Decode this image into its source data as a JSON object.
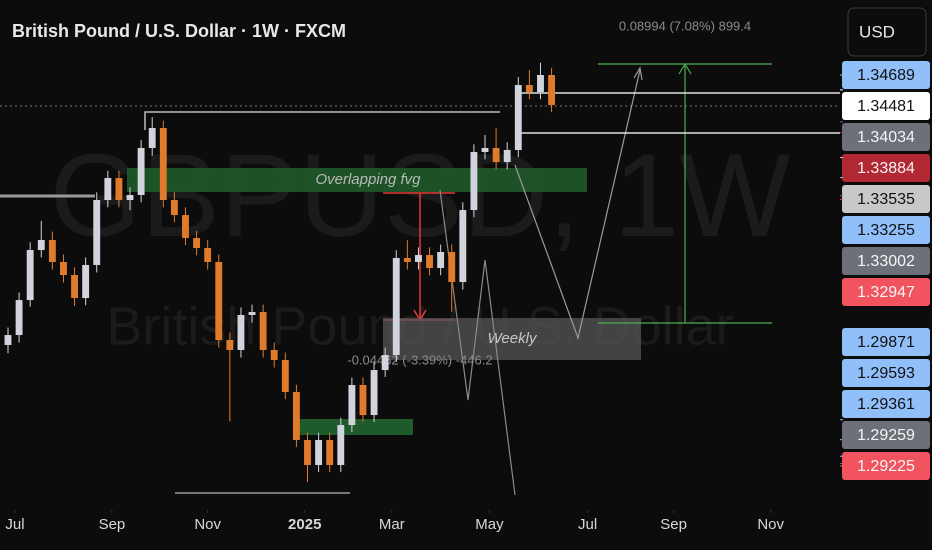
{
  "chart_data": {
    "type": "candlestick",
    "title": "British Pound / U.S. Dollar · 1W · FXCM",
    "currency_button": "USD",
    "watermark": {
      "symbol": "GBPUSD, 1W",
      "name": "British Pound / U.S. Dollar"
    },
    "annotations": {
      "measure_up": "0.08994 (7.08%) 899.4",
      "measure_down": "-0.04462 (-3.39%) -446.2",
      "zone_fvg": "Overlapping fvg",
      "zone_weekly": "Weekly"
    },
    "up_color": "#d1d4dc",
    "down_color": "#e07b2c",
    "open": [
      1.30916,
      1.31055,
      1.31544,
      1.32243,
      1.32383,
      1.32076,
      1.31894,
      1.31572,
      1.32034,
      1.32942,
      1.33249,
      1.32942,
      1.33012,
      1.33669,
      1.33948,
      1.32942,
      1.32732,
      1.32411,
      1.32271,
      1.32076,
      1.30985,
      1.30846,
      1.31335,
      1.31377,
      1.30846,
      1.30706,
      1.30259,
      1.29588,
      1.29239,
      1.29588,
      1.29239,
      1.29798,
      1.30357,
      1.29937,
      1.30566,
      1.30776,
      1.32131,
      1.32076,
      1.32173,
      1.31992,
      1.32215,
      1.31796,
      1.32802,
      1.33613,
      1.33669,
      1.33473,
      1.33641,
      1.34549,
      1.34451,
      1.34689
    ],
    "high": [
      1.3116,
      1.3165,
      1.3235,
      1.3265,
      1.325,
      1.3218,
      1.32,
      1.3214,
      1.3305,
      1.3335,
      1.3335,
      1.3312,
      1.3378,
      1.341,
      1.3405,
      1.3305,
      1.3284,
      1.3251,
      1.3238,
      1.3218,
      1.3109,
      1.3144,
      1.3148,
      1.3148,
      1.3095,
      1.3081,
      1.3036,
      1.2969,
      1.2969,
      1.2969,
      1.299,
      1.3046,
      1.3046,
      1.3067,
      1.3088,
      1.3224,
      1.3238,
      1.3228,
      1.3228,
      1.3232,
      1.3232,
      1.3291,
      1.3372,
      1.3385,
      1.3395,
      1.3375,
      1.3466,
      1.3476,
      1.3486,
      1.3479
    ],
    "low": [
      1.308,
      1.3095,
      1.3145,
      1.3214,
      1.3197,
      1.3179,
      1.3146,
      1.3147,
      1.3193,
      1.3284,
      1.3284,
      1.328,
      1.3291,
      1.3356,
      1.3284,
      1.3263,
      1.3231,
      1.3217,
      1.3197,
      1.3088,
      1.2985,
      1.3074,
      1.3123,
      1.3074,
      1.306,
      1.3016,
      1.2949,
      1.29,
      1.2914,
      1.2914,
      1.2914,
      1.297,
      1.2984,
      1.2984,
      1.3047,
      1.3068,
      1.3197,
      1.3197,
      1.3189,
      1.3189,
      1.3138,
      1.3169,
      1.327,
      1.3351,
      1.3337,
      1.3337,
      1.3354,
      1.3435,
      1.3435,
      1.3417
    ],
    "close": [
      1.31055,
      1.31544,
      1.32243,
      1.32383,
      1.32076,
      1.31894,
      1.31572,
      1.32034,
      1.32942,
      1.33249,
      1.32942,
      1.33012,
      1.33669,
      1.33948,
      1.32942,
      1.32732,
      1.32411,
      1.32271,
      1.32076,
      1.30985,
      1.30846,
      1.31335,
      1.31377,
      1.30846,
      1.30706,
      1.30259,
      1.29588,
      1.29239,
      1.29588,
      1.29239,
      1.29798,
      1.30357,
      1.29937,
      1.30566,
      1.30776,
      1.32131,
      1.32076,
      1.32173,
      1.31992,
      1.32215,
      1.31796,
      1.32802,
      1.33613,
      1.33669,
      1.33473,
      1.33641,
      1.34549,
      1.34451,
      1.34689,
      1.3427
    ],
    "xlim": [
      -0.72,
      75
    ],
    "xticks": [
      {
        "value": 0.63,
        "label": "Jul"
      },
      {
        "value": 9.37,
        "label": "Sep"
      },
      {
        "value": 18,
        "label": "Nov"
      },
      {
        "value": 26.75,
        "label": "2025"
      },
      {
        "value": 34.6,
        "label": "Mar"
      },
      {
        "value": 43.4,
        "label": "May"
      },
      {
        "value": 52.25,
        "label": "Jul"
      },
      {
        "value": 60,
        "label": "Sep"
      },
      {
        "value": 68.75,
        "label": "Nov"
      }
    ],
    "ylim": [
      1.2861,
      1.35737
    ],
    "yticks": [
      1.34689,
      1.34481,
      1.34034,
      1.33884,
      1.33535,
      1.33255,
      1.33002,
      1.32947,
      1.29871,
      1.29593,
      1.29361,
      1.29259,
      1.29225
    ],
    "ytick_colors": [
      "#90bff9",
      "#ffffff",
      "#6e7079",
      "#b22833",
      "#c8c8c8",
      "#90bff9",
      "#6e7079",
      "#f2545f",
      "#90bff9",
      "#90bff9",
      "#90bff9",
      "#6e7079",
      "#f2545f"
    ],
    "grid": false
  }
}
